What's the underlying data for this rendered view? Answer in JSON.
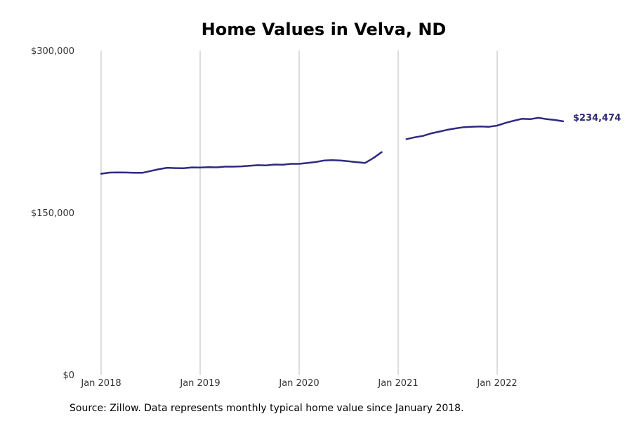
{
  "chart_data": {
    "type": "line",
    "title": "Home Values in Velva, ND",
    "xlabel": "",
    "ylabel": "",
    "ylim": [
      0,
      300000
    ],
    "xlim": [
      "2018-01",
      "2022-12"
    ],
    "y_ticks": [
      "$0",
      "$150,000",
      "$300,000"
    ],
    "y_tick_values": [
      0,
      150000,
      300000
    ],
    "x_ticks": [
      "Jan 2018",
      "Jan 2019",
      "Jan 2020",
      "Jan 2021",
      "Jan 2022"
    ],
    "x_tick_dates": [
      "2018-01",
      "2019-01",
      "2020-01",
      "2021-01",
      "2022-01"
    ],
    "grid": "vertical",
    "series": [
      {
        "color": "#2e2a7f",
        "points": [
          {
            "x": "2018-01",
            "y": 186000
          },
          {
            "x": "2018-02",
            "y": 187000
          },
          {
            "x": "2018-03",
            "y": 187200
          },
          {
            "x": "2018-04",
            "y": 187100
          },
          {
            "x": "2018-05",
            "y": 186900
          },
          {
            "x": "2018-06",
            "y": 186800
          },
          {
            "x": "2018-07",
            "y": 188500
          },
          {
            "x": "2018-08",
            "y": 190200
          },
          {
            "x": "2018-09",
            "y": 191500
          },
          {
            "x": "2018-10",
            "y": 191200
          },
          {
            "x": "2018-11",
            "y": 191100
          },
          {
            "x": "2018-12",
            "y": 191800
          },
          {
            "x": "2019-01",
            "y": 191700
          },
          {
            "x": "2019-02",
            "y": 192100
          },
          {
            "x": "2019-03",
            "y": 191900
          },
          {
            "x": "2019-04",
            "y": 192500
          },
          {
            "x": "2019-05",
            "y": 192500
          },
          {
            "x": "2019-06",
            "y": 192800
          },
          {
            "x": "2019-07",
            "y": 193300
          },
          {
            "x": "2019-08",
            "y": 193900
          },
          {
            "x": "2019-09",
            "y": 193700
          },
          {
            "x": "2019-10",
            "y": 194500
          },
          {
            "x": "2019-11",
            "y": 194300
          },
          {
            "x": "2019-12",
            "y": 195100
          },
          {
            "x": "2020-01",
            "y": 195100
          },
          {
            "x": "2020-02",
            "y": 195900
          },
          {
            "x": "2020-03",
            "y": 196800
          },
          {
            "x": "2020-04",
            "y": 198200
          },
          {
            "x": "2020-05",
            "y": 198600
          },
          {
            "x": "2020-06",
            "y": 198200
          },
          {
            "x": "2020-07",
            "y": 197500
          },
          {
            "x": "2020-08",
            "y": 196700
          },
          {
            "x": "2020-09",
            "y": 196000
          },
          {
            "x": "2020-10",
            "y": 200500
          },
          {
            "x": "2020-11",
            "y": 206000
          },
          {
            "x": "2020-12",
            "y": null
          },
          {
            "x": "2021-01",
            "y": null
          },
          {
            "x": "2021-02",
            "y": 218000
          },
          {
            "x": "2021-03",
            "y": 219700
          },
          {
            "x": "2021-04",
            "y": 221000
          },
          {
            "x": "2021-05",
            "y": 223300
          },
          {
            "x": "2021-06",
            "y": 225000
          },
          {
            "x": "2021-07",
            "y": 226700
          },
          {
            "x": "2021-08",
            "y": 228000
          },
          {
            "x": "2021-09",
            "y": 229100
          },
          {
            "x": "2021-10",
            "y": 229500
          },
          {
            "x": "2021-11",
            "y": 229700
          },
          {
            "x": "2021-12",
            "y": 229400
          },
          {
            "x": "2022-01",
            "y": 230500
          },
          {
            "x": "2022-02",
            "y": 233000
          },
          {
            "x": "2022-03",
            "y": 235000
          },
          {
            "x": "2022-04",
            "y": 236800
          },
          {
            "x": "2022-05",
            "y": 236500
          },
          {
            "x": "2022-06",
            "y": 237700
          },
          {
            "x": "2022-07",
            "y": 236500
          },
          {
            "x": "2022-08",
            "y": 235700
          },
          {
            "x": "2022-09",
            "y": 234474
          }
        ]
      }
    ],
    "end_label": "$234,474",
    "source": "Source: Zillow. Data represents monthly typical home value since January 2018."
  }
}
